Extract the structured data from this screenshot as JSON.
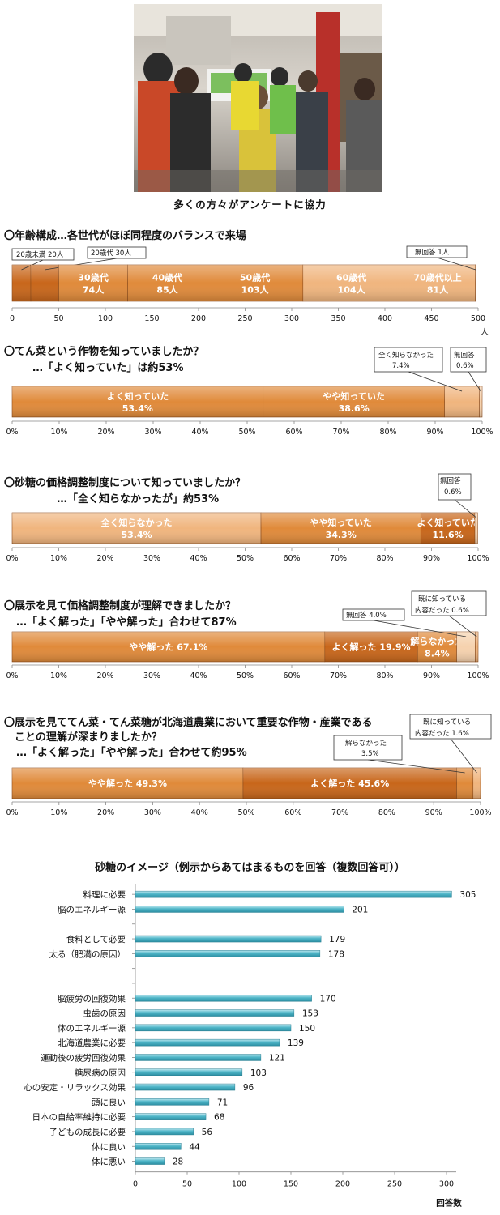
{
  "photo": {
    "caption": "多くの方々がアンケートに協力"
  },
  "colors": {
    "dark_orange": "#c8661a",
    "mid_orange": "#e08a3a",
    "light_orange": "#f0b57e",
    "pale_orange": "#f6d2ae",
    "bar_teal": "#4fb6c8",
    "bar_teal_dark": "#2c8fa3"
  },
  "sections": {
    "s1": {
      "heading": "〇年齢構成…各世代がほぼ同程度のバランスで来場"
    },
    "s2": {
      "heading": "〇てん菜という作物を知っていましたか？",
      "sub": "…「よく知っていた」は約53%"
    },
    "s3": {
      "heading": "〇砂糖の価格調整制度について知っていましたか？",
      "sub": "…「全く知らなかったが」約53%"
    },
    "s4": {
      "heading": "〇展示を見て価格調整制度が理解できましたか？",
      "sub": "…「よく解った」「やや解った」合わせて87%"
    },
    "s5": {
      "heading": "〇展示を見ててん菜・てん菜糖が北海道農業において重要な作物・産業である",
      "heading2": "　ことの理解が深まりましたか？",
      "sub": "…「よく解った」「やや解った」合わせて約95%"
    }
  },
  "chart_data": [
    {
      "type": "bar",
      "orientation": "stacked-horizontal",
      "axis_max": 500,
      "axis_ticks": [
        "0",
        "50",
        "100",
        "150",
        "200",
        "250",
        "300",
        "350",
        "400",
        "450",
        "500"
      ],
      "axis_unit": "人",
      "segments": [
        {
          "value": 20,
          "color": "dark_orange",
          "label": "",
          "callout": "20歳未満 20人"
        },
        {
          "value": 30,
          "color": "dark_orange",
          "label": "",
          "callout": "20歳代 30人"
        },
        {
          "value": 74,
          "color": "mid_orange",
          "label": "30歳代",
          "label2": "74人"
        },
        {
          "value": 85,
          "color": "mid_orange",
          "label": "40歳代",
          "label2": "85人"
        },
        {
          "value": 103,
          "color": "mid_orange",
          "label": "50歳代",
          "label2": "103人"
        },
        {
          "value": 104,
          "color": "light_orange",
          "label": "60歳代",
          "label2": "104人"
        },
        {
          "value": 81,
          "color": "light_orange",
          "label": "70歳代以上",
          "label2": "81人"
        },
        {
          "value": 1,
          "color": "pale_orange",
          "label": "",
          "callout": "無回答 1人"
        }
      ]
    },
    {
      "type": "bar",
      "orientation": "stacked-horizontal",
      "axis_max": 100,
      "axis_ticks": [
        "0%",
        "10%",
        "20%",
        "30%",
        "40%",
        "50%",
        "60%",
        "70%",
        "80%",
        "90%",
        "100%"
      ],
      "segments": [
        {
          "value": 53.4,
          "color": "mid_orange",
          "label": "よく知っていた",
          "label2": "53.4%"
        },
        {
          "value": 38.6,
          "color": "mid_orange",
          "label": "やや知っていた",
          "label2": "38.6%"
        },
        {
          "value": 7.4,
          "color": "light_orange",
          "label": "",
          "callout": "全く知らなかった",
          "callout2": "7.4%"
        },
        {
          "value": 0.6,
          "color": "pale_orange",
          "label": "",
          "callout": "無回答",
          "callout2": "0.6%"
        }
      ]
    },
    {
      "type": "bar",
      "orientation": "stacked-horizontal",
      "axis_max": 100,
      "axis_ticks": [
        "0%",
        "10%",
        "20%",
        "30%",
        "40%",
        "50%",
        "60%",
        "70%",
        "80%",
        "90%",
        "100%"
      ],
      "segments": [
        {
          "value": 53.4,
          "color": "light_orange",
          "label": "全く知らなかった",
          "label2": "53.4%"
        },
        {
          "value": 34.3,
          "color": "mid_orange",
          "label": "やや知っていた",
          "label2": "34.3%"
        },
        {
          "value": 11.6,
          "color": "dark_orange",
          "label": "よく知っていた",
          "label2": "11.6%"
        },
        {
          "value": 0.6,
          "color": "pale_orange",
          "label": "",
          "callout": "無回答",
          "callout2": "0.6%"
        }
      ]
    },
    {
      "type": "bar",
      "orientation": "stacked-horizontal",
      "axis_max": 100,
      "axis_ticks": [
        "0%",
        "10%",
        "20%",
        "30%",
        "40%",
        "50%",
        "60%",
        "70%",
        "80%",
        "90%",
        "100%"
      ],
      "segments": [
        {
          "value": 67.1,
          "color": "mid_orange",
          "label": "やや解った 67.1%"
        },
        {
          "value": 19.9,
          "color": "dark_orange",
          "label": "よく解った 19.9%"
        },
        {
          "value": 8.4,
          "color": "mid_orange",
          "label": "解らなかった",
          "label2": "8.4%"
        },
        {
          "value": 4.0,
          "color": "pale_orange",
          "label": "",
          "callout": "無回答 4.0%"
        },
        {
          "value": 0.6,
          "color": "light_orange",
          "label": "",
          "callout": "既に知っている",
          "callout2": "内容だった 0.6%"
        }
      ]
    },
    {
      "type": "bar",
      "orientation": "stacked-horizontal",
      "axis_max": 100,
      "axis_ticks": [
        "0%",
        "10%",
        "20%",
        "30%",
        "40%",
        "50%",
        "60%",
        "70%",
        "80%",
        "90%",
        "100%"
      ],
      "segments": [
        {
          "value": 49.3,
          "color": "mid_orange",
          "label": "やや解った 49.3%"
        },
        {
          "value": 45.6,
          "color": "dark_orange",
          "label": "よく解った 45.6%"
        },
        {
          "value": 3.5,
          "color": "mid_orange",
          "label": "",
          "callout": "解らなかった",
          "callout2": "3.5%"
        },
        {
          "value": 1.6,
          "color": "light_orange",
          "label": "",
          "callout": "既に知っている",
          "callout2": "内容だった 1.6%"
        }
      ]
    },
    {
      "type": "bar",
      "orientation": "horizontal",
      "title": "砂糖のイメージ（例示からあてはまるものを回答（複数回答可））",
      "xlabel": "回答数",
      "xlim": [
        0,
        300
      ],
      "x_ticks": [
        "0",
        "50",
        "100",
        "150",
        "200",
        "250",
        "300"
      ],
      "categories": [
        "料理に必要",
        "脳のエネルギー源",
        "",
        "食料として必要",
        "太る（肥満の原因）",
        "",
        "",
        "脳疲労の回復効果",
        "虫歯の原因",
        "体のエネルギー源",
        "北海道農業に必要",
        "運動後の疲労回復効果",
        "糖尿病の原因",
        "心の安定・リラックス効果",
        "頭に良い",
        "日本の自給率維持に必要",
        "子どもの成長に必要",
        "体に良い",
        "体に悪い"
      ],
      "values": [
        305,
        201,
        null,
        179,
        178,
        null,
        null,
        170,
        153,
        150,
        139,
        121,
        103,
        96,
        71,
        68,
        56,
        44,
        28
      ]
    }
  ]
}
